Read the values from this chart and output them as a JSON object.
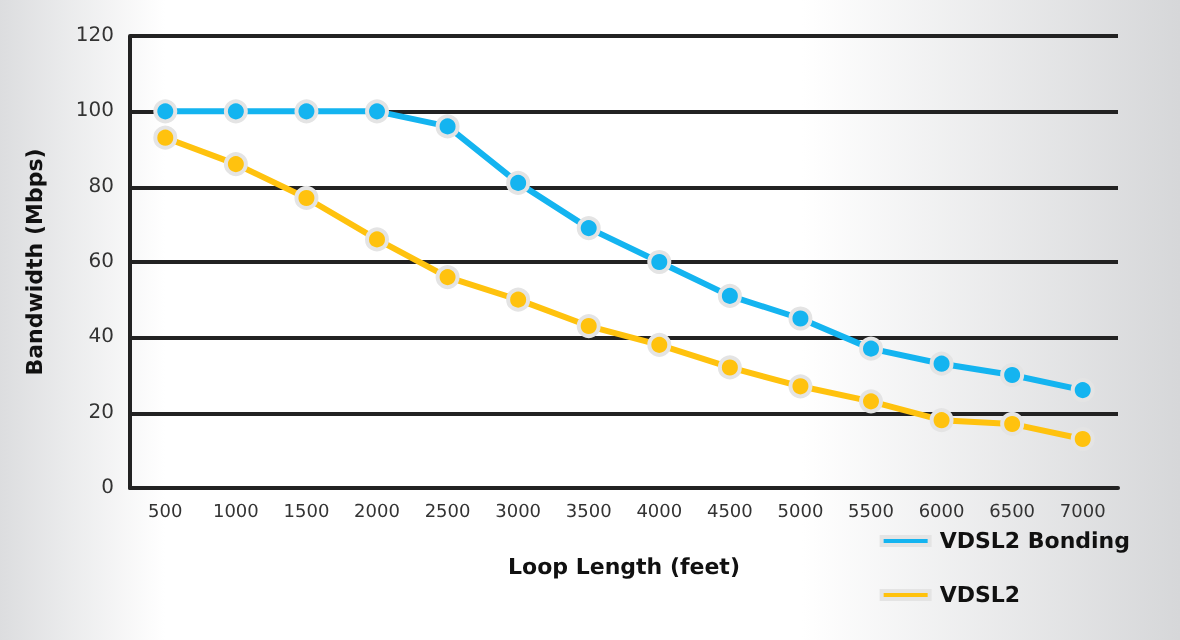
{
  "chart_data": {
    "type": "line",
    "xlabel": "Loop Length (feet)",
    "ylabel": "Bandwidth (Mbps)",
    "categories": [
      "500",
      "1000",
      "1500",
      "2000",
      "2500",
      "3000",
      "3500",
      "4000",
      "4500",
      "5000",
      "5500",
      "6000",
      "6500",
      "7000"
    ],
    "series": [
      {
        "name": "VDSL2 Bonding",
        "color": "#14b4f0",
        "values": [
          100,
          100,
          100,
          100,
          96,
          81,
          69,
          60,
          51,
          45,
          37,
          33,
          30,
          26
        ]
      },
      {
        "name": "VDSL2",
        "color": "#ffc20e",
        "values": [
          93,
          86,
          77,
          66,
          56,
          50,
          43,
          38,
          32,
          27,
          23,
          18,
          17,
          13
        ]
      }
    ],
    "ylim": [
      0,
      120
    ],
    "yticks": [
      0,
      20,
      40,
      60,
      80,
      100,
      120
    ],
    "grid": "y",
    "legend": "bottom right",
    "marker": "circle",
    "line_style": "solid"
  }
}
